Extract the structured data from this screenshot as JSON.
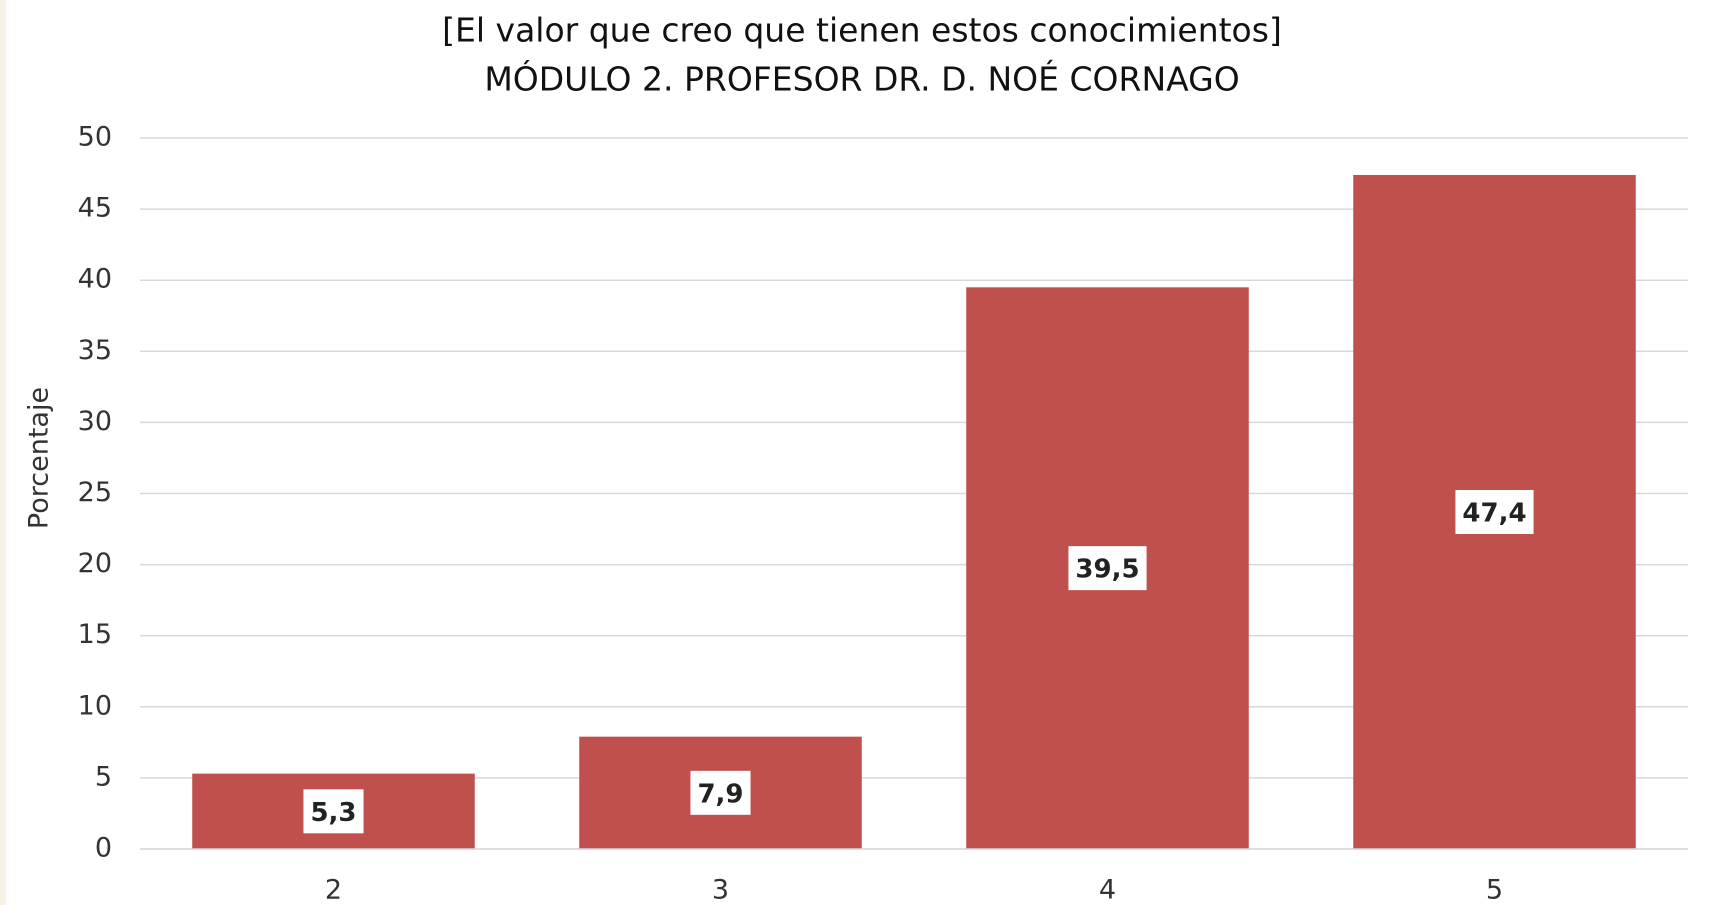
{
  "chart_data": {
    "type": "bar",
    "title": "[El valor que creo que tienen estos conocimientos]",
    "subtitle": "MÓDULO 2. PROFESOR DR. D. NOÉ CORNAGO",
    "y_label": "Porcentaje",
    "categories": [
      "2",
      "3",
      "4",
      "5"
    ],
    "values": [
      5.3,
      7.9,
      39.5,
      47.4
    ],
    "value_labels": [
      "5,3",
      "7,9",
      "39,5",
      "47,4"
    ],
    "color": "#c0504d",
    "ylim": [
      0,
      50
    ],
    "yticks": [
      0,
      5,
      10,
      15,
      20,
      25,
      30,
      35,
      40,
      45,
      50
    ],
    "grid": true
  }
}
